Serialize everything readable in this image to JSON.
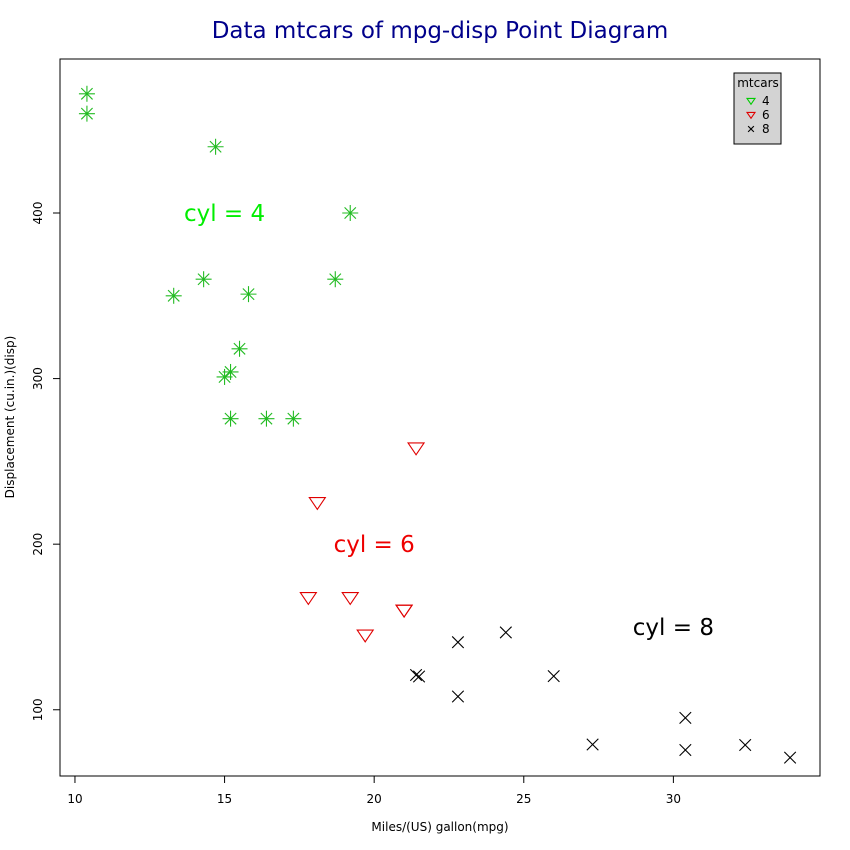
{
  "chart_data": {
    "type": "scatter",
    "title": "Data mtcars of mpg-disp Point Diagram",
    "xlabel": "Miles/(US) gallon(mpg)",
    "ylabel": "Displacement (cu.in.)(disp)",
    "xlim": [
      9.5,
      34.9
    ],
    "ylim": [
      60,
      493
    ],
    "xticks": [
      10,
      15,
      20,
      25,
      30
    ],
    "yticks": [
      100,
      200,
      300,
      400
    ],
    "grid": false,
    "legend": {
      "title": "mtcars",
      "placement": "top-right",
      "entries": [
        {
          "label": "4",
          "marker": "triangle-down",
          "color": "#00cc00"
        },
        {
          "label": "6",
          "marker": "triangle-down",
          "color": "#e00000"
        },
        {
          "label": "8",
          "marker": "x",
          "color": "#000000"
        }
      ]
    },
    "series": [
      {
        "marker": "asterisk",
        "color": "#22bb22",
        "x": [
          10.4,
          10.4,
          14.7,
          19.2,
          14.3,
          18.7,
          13.3,
          15.8,
          15.5,
          15.0,
          15.2,
          15.2,
          16.4,
          17.3
        ],
        "y": [
          472,
          460,
          440,
          400,
          360,
          360,
          350,
          351,
          318,
          301,
          304,
          275.8,
          275.8,
          275.8
        ]
      },
      {
        "marker": "triangle-down",
        "color": "#e00000",
        "x": [
          21.4,
          18.1,
          17.8,
          19.2,
          21.0,
          21.0,
          19.7
        ],
        "y": [
          258,
          225,
          167.6,
          167.6,
          160,
          160,
          145
        ]
      },
      {
        "marker": "x",
        "color": "#000000",
        "x": [
          22.8,
          24.4,
          21.4,
          21.5,
          26.0,
          22.8,
          30.4,
          27.3,
          30.4,
          32.4,
          33.9
        ],
        "y": [
          140.8,
          146.7,
          121,
          120.1,
          120.3,
          108,
          95.1,
          79,
          75.7,
          78.7,
          71.1
        ]
      }
    ],
    "annotations": [
      {
        "text": "cyl = 4",
        "x": 15.0,
        "y": 400,
        "color": "#00ee00"
      },
      {
        "text": "cyl = 6",
        "x": 20.0,
        "y": 200,
        "color": "#ee0000"
      },
      {
        "text": "cyl = 8",
        "x": 30.0,
        "y": 150,
        "color": "#000000"
      }
    ]
  }
}
